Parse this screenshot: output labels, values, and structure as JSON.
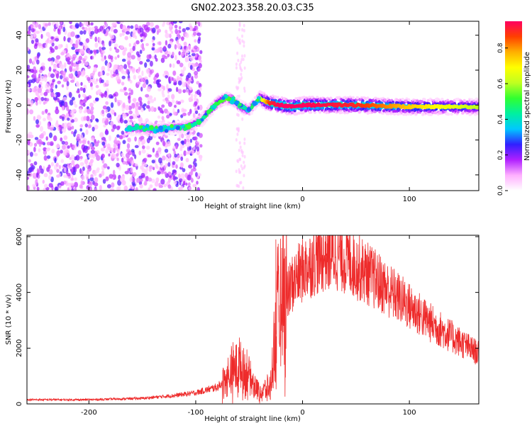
{
  "title": "GN02.2023.358.20.03.C35",
  "colors": {
    "axis": "#000000",
    "snr_line": "#ee2b2b",
    "scatter_purple": "#7a2cf0",
    "ridge_red": "#ff2a2a",
    "ridge_green": "#44e04a",
    "ridge_blue": "#2a30ff"
  },
  "chart_data": [
    {
      "type": "heatmap",
      "xlabel": "Height of straight line (km)",
      "ylabel": "Frequency (Hz)",
      "xlim": [
        -258,
        165
      ],
      "ylim": [
        -49,
        48
      ],
      "xticks": [
        -200,
        -100,
        0,
        100
      ],
      "xtick_labels": [
        "-200",
        "-100",
        "0",
        "100"
      ],
      "yticks": [
        -40,
        -20,
        0,
        20,
        40
      ],
      "ytick_labels": [
        "-40",
        "-20",
        "0",
        "20",
        "40"
      ],
      "grid": false,
      "colorbar": {
        "label": "Normalized spectral amplitude",
        "range": [
          0,
          0.95
        ],
        "ticks": [
          0.0,
          0.2,
          0.4,
          0.6,
          0.8
        ],
        "tick_labels": [
          "0.0",
          "0.2",
          "0.4",
          "0.6",
          "0.8"
        ],
        "colors": [
          "#ffffff",
          "#ffb0ff",
          "#b020ff",
          "#3020ff",
          "#00c8ff",
          "#00f0a0",
          "#30ff30",
          "#c0ff20",
          "#ffff00",
          "#ffb000",
          "#ff4000",
          "#ff0060"
        ]
      },
      "ridge": {
        "x": [
          -165,
          -150,
          -138,
          -120,
          -105,
          -95,
          -88,
          -80,
          -72,
          -65,
          -58,
          -50,
          -45,
          -40,
          -35,
          -30,
          -20,
          -10,
          0,
          50,
          100,
          165
        ],
        "y": [
          -14,
          -13,
          -14,
          -13,
          -12,
          -9,
          -4,
          1,
          4,
          3,
          -1,
          -3,
          1,
          4,
          2,
          1,
          0,
          -1,
          0,
          0,
          -1,
          -1
        ],
        "amplitude": [
          0.35,
          0.45,
          0.4,
          0.35,
          0.4,
          0.45,
          0.5,
          0.5,
          0.55,
          0.5,
          0.45,
          0.45,
          0.5,
          0.55,
          0.75,
          0.9,
          0.95,
          0.95,
          0.95,
          0.9,
          0.75,
          0.6
        ]
      },
      "noise_region_x": [
        -258,
        -95
      ],
      "noise_amplitude": [
        0.05,
        0.25
      ]
    },
    {
      "type": "line",
      "xlabel": "Height of straight line (km)",
      "ylabel": "SNR (10 * v/v)",
      "xlim": [
        -258,
        165
      ],
      "ylim": [
        0,
        6050
      ],
      "xticks": [
        -200,
        -100,
        0,
        100
      ],
      "xtick_labels": [
        "-200",
        "-100",
        "0",
        "100"
      ],
      "yticks": [
        0,
        2000,
        4000,
        6000
      ],
      "ytick_labels": [
        "0",
        "2000",
        "4000",
        "6000"
      ],
      "grid": false,
      "envelope": {
        "x": [
          -258,
          -200,
          -150,
          -120,
          -100,
          -80,
          -70,
          -60,
          -50,
          -40,
          -30,
          -25,
          -20,
          -15,
          -10,
          0,
          10,
          20,
          30,
          40,
          60,
          80,
          100,
          120,
          140,
          165
        ],
        "y": [
          150,
          150,
          200,
          300,
          400,
          600,
          900,
          1400,
          1000,
          400,
          600,
          2500,
          3500,
          3800,
          4300,
          4800,
          5100,
          5300,
          5400,
          5200,
          4700,
          4100,
          3500,
          2900,
          2400,
          1800
        ]
      },
      "noise_fraction": 0.25,
      "spikes": [
        {
          "x": -25,
          "y": 5900
        },
        {
          "x": 22,
          "y": 6000
        }
      ]
    }
  ]
}
